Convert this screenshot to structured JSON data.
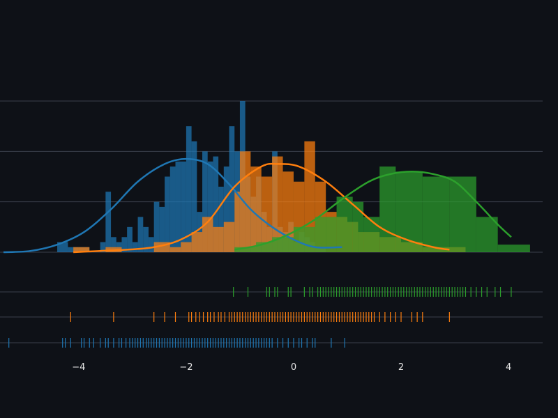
{
  "colors": {
    "background": "#0e1117",
    "grid": "#3a3f4b",
    "text": "#e6e6e6"
  },
  "chart_data": {
    "type": "histogram-distplot",
    "title": "",
    "xlabel": "",
    "ylabel": "",
    "xlim": [
      -5.4,
      4.7
    ],
    "hist_ylim": [
      0,
      0.6
    ],
    "hist_yticks": [
      0,
      0.2,
      0.4,
      0.6
    ],
    "xticks": [
      {
        "value": -4,
        "label": "−4"
      },
      {
        "value": -2,
        "label": "−2"
      },
      {
        "value": 0,
        "label": "0"
      },
      {
        "value": 2,
        "label": "2"
      },
      {
        "value": 4,
        "label": "4"
      }
    ],
    "grid": true,
    "legend": false,
    "series": [
      {
        "color": "#1f77b4",
        "bins": [
          [
            -4.4,
            -4.2,
            0.04
          ],
          [
            -4.2,
            -4.0,
            0.02
          ],
          [
            -4.0,
            -3.8,
            0.02
          ],
          [
            -3.8,
            -3.6,
            0.0
          ],
          [
            -3.6,
            -3.5,
            0.04
          ],
          [
            -3.5,
            -3.4,
            0.24
          ],
          [
            -3.4,
            -3.3,
            0.06
          ],
          [
            -3.3,
            -3.2,
            0.04
          ],
          [
            -3.2,
            -3.1,
            0.06
          ],
          [
            -3.1,
            -3.0,
            0.1
          ],
          [
            -3.0,
            -2.9,
            0.04
          ],
          [
            -2.9,
            -2.8,
            0.14
          ],
          [
            -2.8,
            -2.7,
            0.1
          ],
          [
            -2.7,
            -2.6,
            0.06
          ],
          [
            -2.6,
            -2.5,
            0.2
          ],
          [
            -2.5,
            -2.4,
            0.18
          ],
          [
            -2.4,
            -2.3,
            0.3
          ],
          [
            -2.3,
            -2.2,
            0.34
          ],
          [
            -2.2,
            -2.1,
            0.36
          ],
          [
            -2.1,
            -2.0,
            0.36
          ],
          [
            -2.0,
            -1.9,
            0.5
          ],
          [
            -1.9,
            -1.8,
            0.44
          ],
          [
            -1.8,
            -1.7,
            0.16
          ],
          [
            -1.7,
            -1.6,
            0.4
          ],
          [
            -1.6,
            -1.5,
            0.36
          ],
          [
            -1.5,
            -1.4,
            0.38
          ],
          [
            -1.4,
            -1.3,
            0.26
          ],
          [
            -1.3,
            -1.2,
            0.34
          ],
          [
            -1.2,
            -1.1,
            0.5
          ],
          [
            -1.1,
            -1.0,
            0.4
          ],
          [
            -1.0,
            -0.9,
            0.6
          ],
          [
            -0.9,
            -0.8,
            0.3
          ],
          [
            -0.8,
            -0.7,
            0.22
          ],
          [
            -0.7,
            -0.6,
            0.3
          ],
          [
            -0.6,
            -0.5,
            0.16
          ],
          [
            -0.5,
            -0.4,
            0.1
          ],
          [
            -0.4,
            -0.3,
            0.4
          ],
          [
            -0.3,
            -0.2,
            0.1
          ],
          [
            -0.2,
            -0.1,
            0.08
          ],
          [
            -0.1,
            0.0,
            0.12
          ],
          [
            0.0,
            0.1,
            0.04
          ],
          [
            0.1,
            0.2,
            0.08
          ],
          [
            0.2,
            0.3,
            0.06
          ],
          [
            0.3,
            0.4,
            0.04
          ],
          [
            0.4,
            0.5,
            0.02
          ],
          [
            0.5,
            0.6,
            0.02
          ]
        ],
        "kde": [
          [
            -5.4,
            0.0
          ],
          [
            -4.9,
            0.005
          ],
          [
            -4.4,
            0.03
          ],
          [
            -3.9,
            0.08
          ],
          [
            -3.4,
            0.17
          ],
          [
            -2.9,
            0.28
          ],
          [
            -2.4,
            0.35
          ],
          [
            -2.0,
            0.37
          ],
          [
            -1.6,
            0.35
          ],
          [
            -1.2,
            0.27
          ],
          [
            -0.8,
            0.17
          ],
          [
            -0.4,
            0.1
          ],
          [
            0.0,
            0.05
          ],
          [
            0.4,
            0.02
          ],
          [
            0.9,
            0.02
          ]
        ],
        "rug": [
          -5.3,
          -4.3,
          -4.25,
          -4.15,
          -3.95,
          -3.9,
          -3.8,
          -3.72,
          -3.6,
          -3.5,
          -3.45,
          -3.35,
          -3.25,
          -3.2,
          -3.12,
          -3.05,
          -3.0,
          -2.95,
          -2.9,
          -2.85,
          -2.8,
          -2.74,
          -2.7,
          -2.65,
          -2.6,
          -2.55,
          -2.5,
          -2.45,
          -2.4,
          -2.35,
          -2.3,
          -2.25,
          -2.2,
          -2.15,
          -2.1,
          -2.05,
          -2.0,
          -1.95,
          -1.9,
          -1.85,
          -1.8,
          -1.75,
          -1.7,
          -1.65,
          -1.6,
          -1.55,
          -1.5,
          -1.45,
          -1.4,
          -1.35,
          -1.3,
          -1.25,
          -1.2,
          -1.15,
          -1.1,
          -1.05,
          -1.0,
          -0.95,
          -0.9,
          -0.85,
          -0.8,
          -0.75,
          -0.7,
          -0.65,
          -0.6,
          -0.55,
          -0.5,
          -0.45,
          -0.4,
          -0.3,
          -0.2,
          -0.1,
          0.0,
          0.1,
          0.15,
          0.25,
          0.35,
          0.4,
          0.7,
          0.95
        ]
      },
      {
        "color": "#ff7f0e",
        "bins": [
          [
            -4.1,
            -3.8,
            0.02
          ],
          [
            -3.8,
            -3.5,
            0.0
          ],
          [
            -3.5,
            -3.2,
            0.02
          ],
          [
            -3.2,
            -2.9,
            0.0
          ],
          [
            -2.9,
            -2.6,
            0.0
          ],
          [
            -2.6,
            -2.3,
            0.04
          ],
          [
            -2.3,
            -2.1,
            0.02
          ],
          [
            -2.1,
            -1.9,
            0.04
          ],
          [
            -1.9,
            -1.7,
            0.08
          ],
          [
            -1.7,
            -1.5,
            0.14
          ],
          [
            -1.5,
            -1.3,
            0.1
          ],
          [
            -1.3,
            -1.1,
            0.12
          ],
          [
            -1.1,
            -1.0,
            0.24
          ],
          [
            -1.0,
            -0.8,
            0.4
          ],
          [
            -0.8,
            -0.6,
            0.34
          ],
          [
            -0.6,
            -0.4,
            0.3
          ],
          [
            -0.4,
            -0.2,
            0.38
          ],
          [
            -0.2,
            0.0,
            0.32
          ],
          [
            0.0,
            0.2,
            0.28
          ],
          [
            0.2,
            0.4,
            0.44
          ],
          [
            0.4,
            0.6,
            0.28
          ],
          [
            0.6,
            0.8,
            0.16
          ],
          [
            0.8,
            1.0,
            0.14
          ],
          [
            1.0,
            1.2,
            0.12
          ],
          [
            1.2,
            1.6,
            0.08
          ],
          [
            1.6,
            2.0,
            0.06
          ],
          [
            2.0,
            2.4,
            0.04
          ],
          [
            2.4,
            2.8,
            0.02
          ],
          [
            2.8,
            3.2,
            0.02
          ]
        ],
        "kde": [
          [
            -4.1,
            0.0
          ],
          [
            -3.6,
            0.005
          ],
          [
            -3.1,
            0.01
          ],
          [
            -2.6,
            0.02
          ],
          [
            -2.1,
            0.05
          ],
          [
            -1.6,
            0.12
          ],
          [
            -1.1,
            0.26
          ],
          [
            -0.6,
            0.34
          ],
          [
            -0.3,
            0.35
          ],
          [
            0.1,
            0.34
          ],
          [
            0.6,
            0.28
          ],
          [
            1.1,
            0.19
          ],
          [
            1.6,
            0.1
          ],
          [
            2.1,
            0.05
          ],
          [
            2.6,
            0.02
          ],
          [
            2.9,
            0.01
          ]
        ],
        "rug": [
          -4.15,
          -3.35,
          -2.6,
          -2.4,
          -2.2,
          -1.95,
          -1.9,
          -1.82,
          -1.75,
          -1.68,
          -1.6,
          -1.55,
          -1.48,
          -1.4,
          -1.35,
          -1.28,
          -1.2,
          -1.15,
          -1.1,
          -1.05,
          -1.0,
          -0.95,
          -0.9,
          -0.85,
          -0.8,
          -0.75,
          -0.7,
          -0.65,
          -0.6,
          -0.55,
          -0.5,
          -0.45,
          -0.4,
          -0.35,
          -0.3,
          -0.25,
          -0.2,
          -0.15,
          -0.1,
          -0.05,
          0.0,
          0.05,
          0.1,
          0.15,
          0.2,
          0.25,
          0.3,
          0.35,
          0.4,
          0.45,
          0.5,
          0.55,
          0.6,
          0.65,
          0.7,
          0.75,
          0.8,
          0.85,
          0.9,
          0.95,
          1.0,
          1.05,
          1.1,
          1.15,
          1.2,
          1.25,
          1.3,
          1.35,
          1.4,
          1.45,
          1.5,
          1.6,
          1.7,
          1.8,
          1.9,
          2.0,
          2.2,
          2.3,
          2.4,
          2.9
        ]
      },
      {
        "color": "#2ca02c",
        "bins": [
          [
            -1.1,
            -0.7,
            0.02
          ],
          [
            -0.7,
            -0.4,
            0.04
          ],
          [
            -0.4,
            0.0,
            0.06
          ],
          [
            0.0,
            0.4,
            0.1
          ],
          [
            0.4,
            0.8,
            0.14
          ],
          [
            0.8,
            1.1,
            0.22
          ],
          [
            1.1,
            1.3,
            0.2
          ],
          [
            1.3,
            1.6,
            0.14
          ],
          [
            1.6,
            1.9,
            0.34
          ],
          [
            1.9,
            2.4,
            0.32
          ],
          [
            2.4,
            2.9,
            0.3
          ],
          [
            2.9,
            3.4,
            0.3
          ],
          [
            3.4,
            3.8,
            0.14
          ],
          [
            3.8,
            4.4,
            0.03
          ]
        ],
        "kde": [
          [
            -1.1,
            0.01
          ],
          [
            -0.6,
            0.03
          ],
          [
            -0.1,
            0.07
          ],
          [
            0.4,
            0.13
          ],
          [
            0.9,
            0.21
          ],
          [
            1.4,
            0.28
          ],
          [
            1.8,
            0.31
          ],
          [
            2.2,
            0.32
          ],
          [
            2.6,
            0.31
          ],
          [
            3.0,
            0.28
          ],
          [
            3.4,
            0.2
          ],
          [
            3.8,
            0.11
          ],
          [
            4.05,
            0.06
          ]
        ],
        "rug": [
          -1.12,
          -0.85,
          -0.5,
          -0.45,
          -0.35,
          -0.3,
          -0.1,
          -0.05,
          0.2,
          0.3,
          0.35,
          0.45,
          0.5,
          0.55,
          0.6,
          0.65,
          0.7,
          0.75,
          0.8,
          0.85,
          0.9,
          0.95,
          1.0,
          1.05,
          1.1,
          1.15,
          1.2,
          1.25,
          1.3,
          1.35,
          1.4,
          1.45,
          1.5,
          1.55,
          1.6,
          1.65,
          1.7,
          1.75,
          1.8,
          1.85,
          1.9,
          1.95,
          2.0,
          2.05,
          2.1,
          2.15,
          2.2,
          2.25,
          2.3,
          2.35,
          2.4,
          2.45,
          2.5,
          2.55,
          2.6,
          2.65,
          2.7,
          2.75,
          2.8,
          2.85,
          2.9,
          2.95,
          3.0,
          3.05,
          3.1,
          3.15,
          3.2,
          3.3,
          3.4,
          3.5,
          3.6,
          3.75,
          3.85,
          4.05
        ]
      }
    ]
  }
}
